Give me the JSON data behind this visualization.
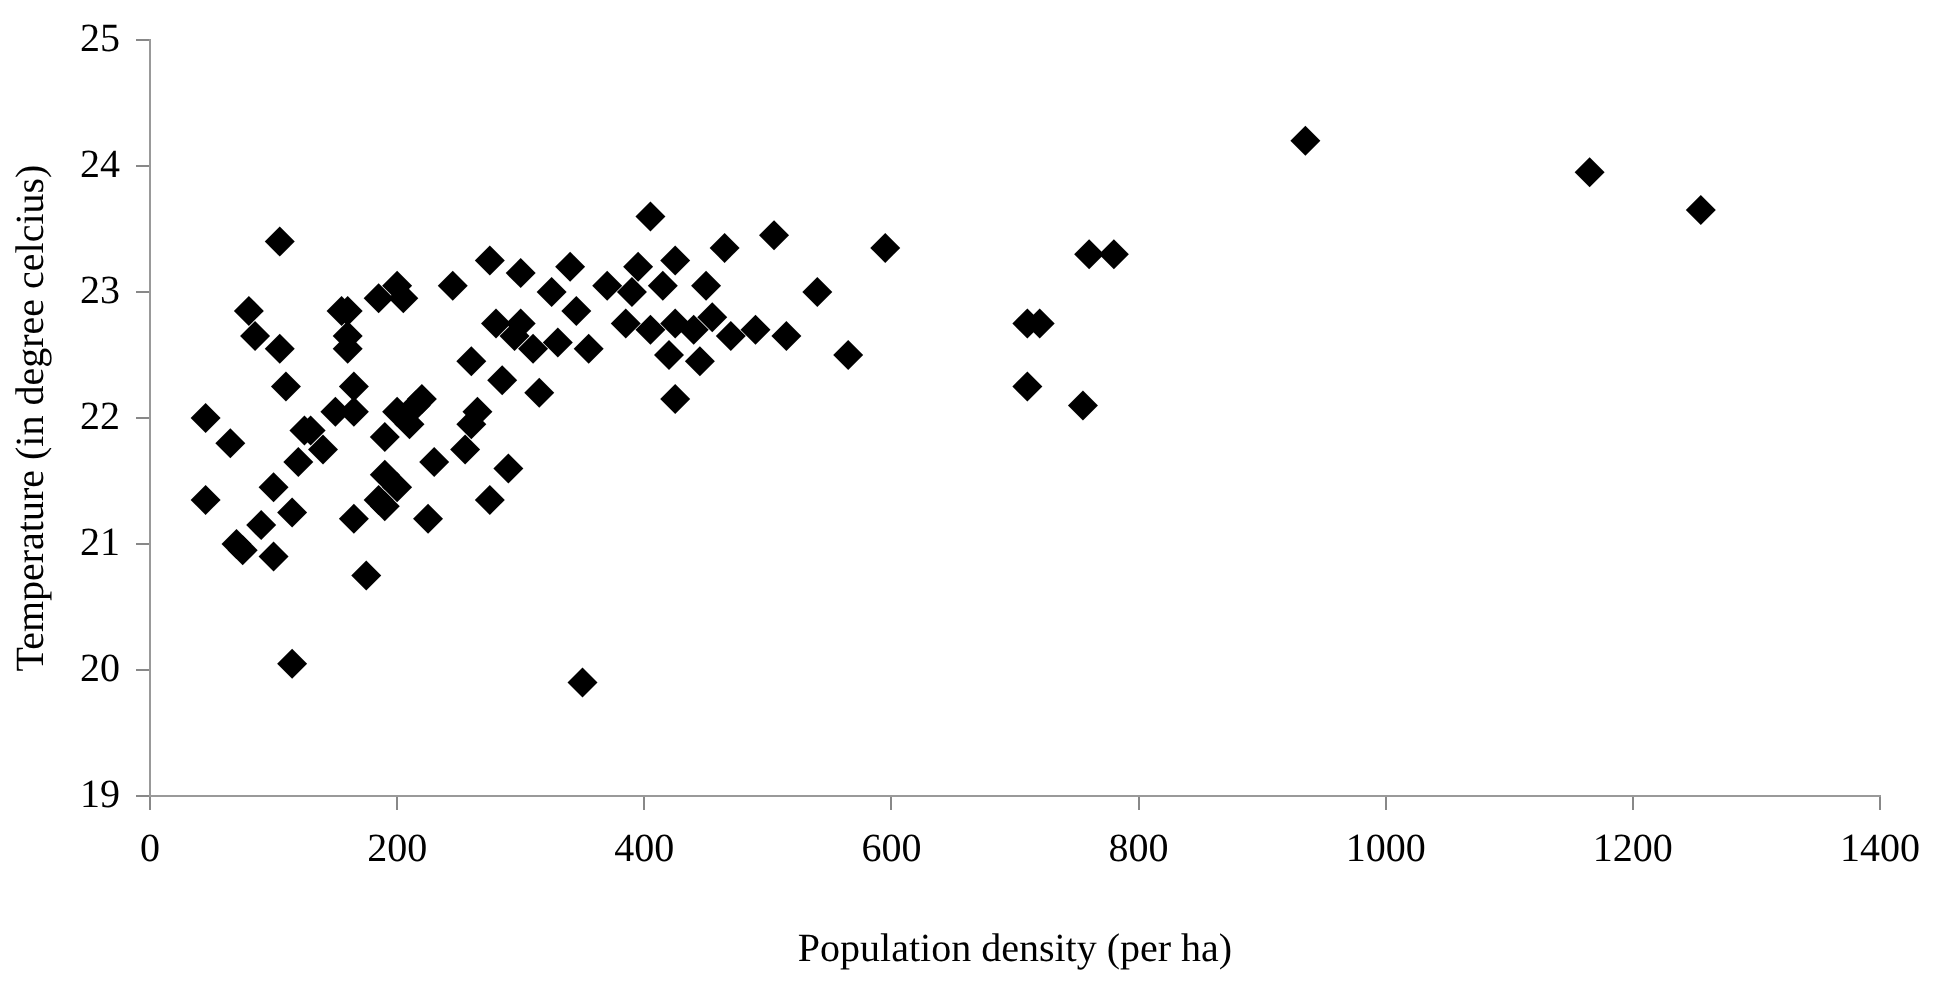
{
  "chart_data": {
    "type": "scatter",
    "xlabel": "Population density (per ha)",
    "ylabel": "Temperature (in degree celcius)",
    "xlim": [
      0,
      1400
    ],
    "xticks": [
      0,
      200,
      400,
      600,
      800,
      1000,
      1200,
      1400
    ],
    "ylim": [
      19,
      25
    ],
    "yticks": [
      19,
      20,
      21,
      22,
      23,
      24,
      25
    ],
    "grid": false,
    "legend": false,
    "marker": "diamond",
    "series": [
      {
        "color": "#000000",
        "x": [
          45,
          45,
          65,
          70,
          75,
          80,
          85,
          90,
          100,
          100,
          105,
          105,
          110,
          115,
          115,
          120,
          125,
          130,
          140,
          150,
          155,
          160,
          160,
          160,
          165,
          165,
          165,
          175,
          185,
          185,
          190,
          190,
          190,
          200,
          200,
          200,
          205,
          210,
          215,
          220,
          225,
          230,
          245,
          255,
          260,
          260,
          265,
          275,
          275,
          280,
          285,
          290,
          295,
          300,
          300,
          310,
          315,
          325,
          330,
          340,
          345,
          350,
          355,
          370,
          385,
          390,
          395,
          405,
          405,
          415,
          425,
          420,
          425,
          425,
          440,
          445,
          450,
          455,
          465,
          470,
          490,
          505,
          515,
          540,
          565,
          595,
          710,
          710,
          720,
          755,
          760,
          780,
          935,
          1165,
          1255
        ],
        "values": [
          22.0,
          21.35,
          21.8,
          21.0,
          20.95,
          22.85,
          22.65,
          21.15,
          21.45,
          20.9,
          23.4,
          22.55,
          22.25,
          20.05,
          21.25,
          21.65,
          21.9,
          21.9,
          21.75,
          22.05,
          22.85,
          22.85,
          22.65,
          22.55,
          22.25,
          22.05,
          21.2,
          20.75,
          21.35,
          22.95,
          21.85,
          21.55,
          21.3,
          21.45,
          23.05,
          22.05,
          22.95,
          21.95,
          22.1,
          22.15,
          21.2,
          21.65,
          23.05,
          21.75,
          21.95,
          22.45,
          22.05,
          23.25,
          21.35,
          22.75,
          22.3,
          21.6,
          22.65,
          23.15,
          22.75,
          22.55,
          22.2,
          23.0,
          22.6,
          23.2,
          22.85,
          19.9,
          22.55,
          23.05,
          22.75,
          23.0,
          23.2,
          23.6,
          22.7,
          23.05,
          22.75,
          22.5,
          23.25,
          22.15,
          22.7,
          22.45,
          23.05,
          22.8,
          23.35,
          22.65,
          22.7,
          23.45,
          22.65,
          23.0,
          22.5,
          23.35,
          22.25,
          22.75,
          22.75,
          22.1,
          23.3,
          23.3,
          24.2,
          23.95,
          23.65
        ]
      }
    ]
  }
}
